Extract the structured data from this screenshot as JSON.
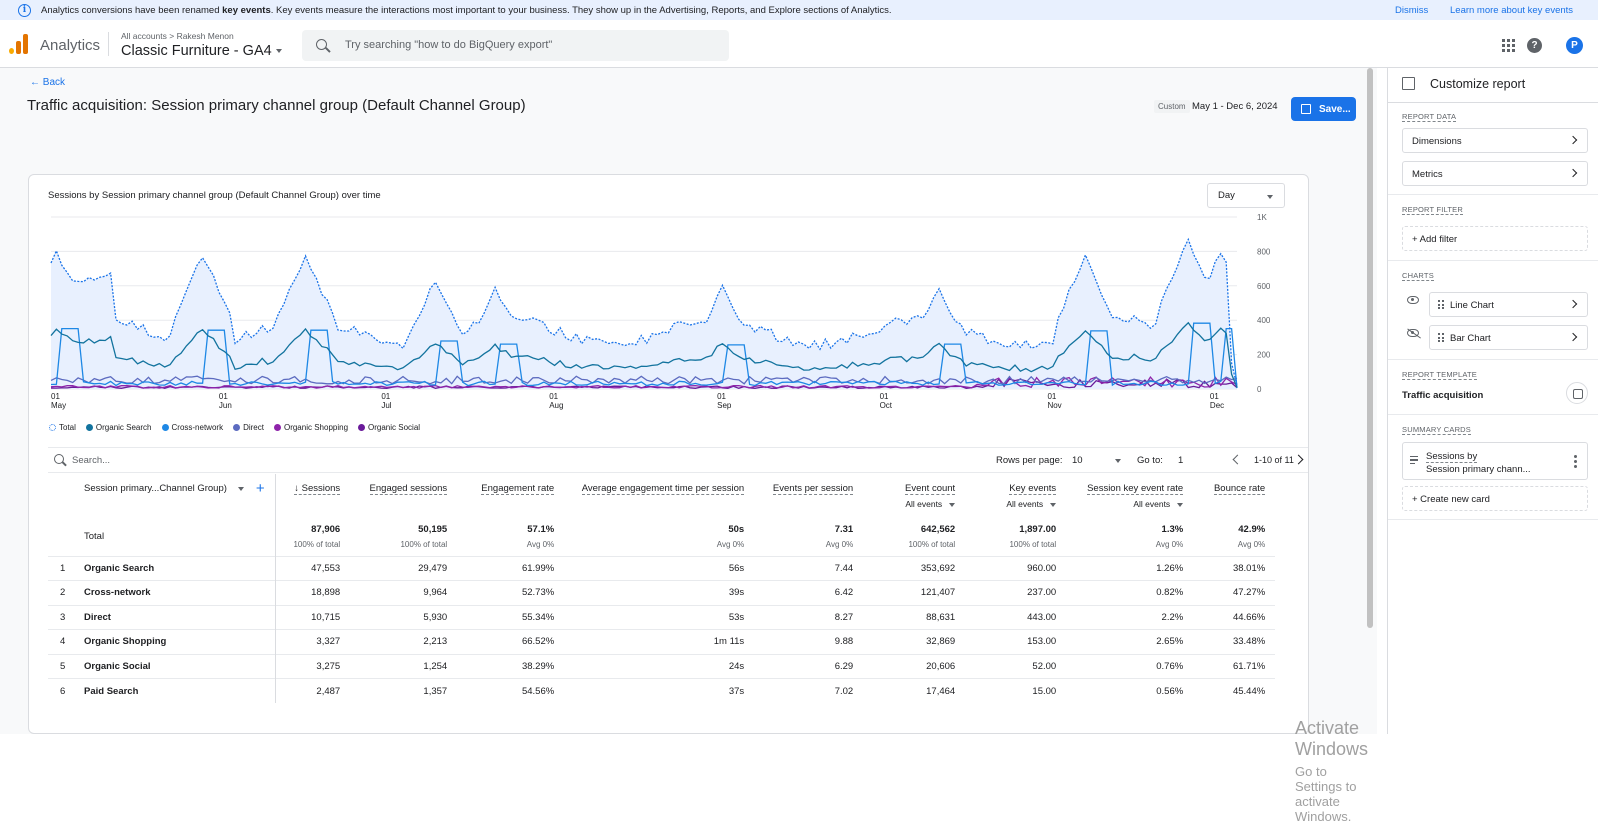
{
  "banner": {
    "text_before": "Analytics conversions have been renamed ",
    "text_bold": "key events",
    "text_after": ". Key events measure the interactions most important to your business. They show up in the Advertising, Reports, and Explore sections of Analytics.",
    "dismiss_label": "Dismiss",
    "learn_more_label": "Learn more about key events"
  },
  "header": {
    "app_name": "Analytics",
    "crumb_all": "All accounts",
    "crumb_sep": ">",
    "crumb_account": "Rakesh Menon",
    "property": "Classic Furniture - GA4",
    "search_placeholder": "Try searching \"how to do BigQuery export\""
  },
  "page": {
    "back_label": "Back",
    "title": "Traffic acquisition: Session primary channel group (Default Channel Group)",
    "custom_label": "Custom",
    "date_range": "May 1 - Dec 6, 2024",
    "save_label": "Save..."
  },
  "chart_data": {
    "type": "line",
    "title": "Sessions by Session primary channel group (Default Channel Group) over time",
    "granularity": "Day",
    "x_ticks": [
      {
        "day": "01",
        "month": "May",
        "offset": 0
      },
      {
        "day": "01",
        "month": "Jun",
        "offset": 31
      },
      {
        "day": "01",
        "month": "Jul",
        "offset": 61
      },
      {
        "day": "01",
        "month": "Aug",
        "offset": 92
      },
      {
        "day": "01",
        "month": "Sep",
        "offset": 123
      },
      {
        "day": "01",
        "month": "Oct",
        "offset": 153
      },
      {
        "day": "01",
        "month": "Nov",
        "offset": 184
      },
      {
        "day": "01",
        "month": "Dec",
        "offset": 214
      }
    ],
    "y_ticks": [
      "0",
      "200",
      "400",
      "600",
      "800",
      "1K"
    ],
    "ylim": [
      0,
      1000
    ],
    "series": [
      {
        "name": "Total",
        "color": "#1a73e8"
      },
      {
        "name": "Organic Search",
        "color": "#12739e"
      },
      {
        "name": "Cross-network",
        "color": "#1e88e5"
      },
      {
        "name": "Direct",
        "color": "#5c6bc0"
      },
      {
        "name": "Organic Shopping",
        "color": "#8e24aa"
      },
      {
        "name": "Organic Social",
        "color": "#6a1b9a"
      }
    ]
  },
  "table": {
    "search_placeholder": "Search...",
    "rows_per_page_label": "Rows per page:",
    "rows_per_page": "10",
    "goto_label": "Go to:",
    "goto_value": "1",
    "range_label": "1-10 of 11",
    "dimension_header": "Session primary...Channel Group)",
    "columns": [
      {
        "label": "↓ Sessions",
        "sub": ""
      },
      {
        "label": "Engaged sessions",
        "sub": ""
      },
      {
        "label": "Engagement rate",
        "sub": ""
      },
      {
        "label": "Average engagement time per session",
        "sub": ""
      },
      {
        "label": "Events per session",
        "sub": ""
      },
      {
        "label": "Event count",
        "sub": "All events"
      },
      {
        "label": "Key events",
        "sub": "All events"
      },
      {
        "label": "Session key event rate",
        "sub": "All events"
      },
      {
        "label": "Bounce rate",
        "sub": ""
      }
    ],
    "total": {
      "label": "Total",
      "values": [
        "87,906",
        "50,195",
        "57.1%",
        "50s",
        "7.31",
        "642,562",
        "1,897.00",
        "1.3%",
        "42.9%"
      ],
      "subs": [
        "100% of total",
        "100% of total",
        "Avg 0%",
        "Avg 0%",
        "Avg 0%",
        "100% of total",
        "100% of total",
        "Avg 0%",
        "Avg 0%"
      ]
    },
    "rows": [
      {
        "idx": "1",
        "name": "Organic Search",
        "values": [
          "47,553",
          "29,479",
          "61.99%",
          "56s",
          "7.44",
          "353,692",
          "960.00",
          "1.26%",
          "38.01%"
        ]
      },
      {
        "idx": "2",
        "name": "Cross-network",
        "values": [
          "18,898",
          "9,964",
          "52.73%",
          "39s",
          "6.42",
          "121,407",
          "237.00",
          "0.82%",
          "47.27%"
        ]
      },
      {
        "idx": "3",
        "name": "Direct",
        "values": [
          "10,715",
          "5,930",
          "55.34%",
          "53s",
          "8.27",
          "88,631",
          "443.00",
          "2.2%",
          "44.66%"
        ]
      },
      {
        "idx": "4",
        "name": "Organic Shopping",
        "values": [
          "3,327",
          "2,213",
          "66.52%",
          "1m 11s",
          "9.88",
          "32,869",
          "153.00",
          "2.65%",
          "33.48%"
        ]
      },
      {
        "idx": "5",
        "name": "Organic Social",
        "values": [
          "3,275",
          "1,254",
          "38.29%",
          "24s",
          "6.29",
          "20,606",
          "52.00",
          "0.76%",
          "61.71%"
        ]
      },
      {
        "idx": "6",
        "name": "Paid Search",
        "values": [
          "2,487",
          "1,357",
          "54.56%",
          "37s",
          "7.02",
          "17,464",
          "15.00",
          "0.56%",
          "45.44%"
        ]
      }
    ]
  },
  "watermark": {
    "line1": "Activate Windows",
    "line2": "Go to Settings to activate Windows."
  },
  "sidebar": {
    "title": "Customize report",
    "report_data_label": "REPORT DATA",
    "dimensions_label": "Dimensions",
    "metrics_label": "Metrics",
    "report_filter_label": "REPORT FILTER",
    "add_filter_label": "+ Add filter",
    "charts_label": "CHARTS",
    "line_chart_label": "Line Chart",
    "bar_chart_label": "Bar Chart",
    "report_template_label": "REPORT TEMPLATE",
    "template_name": "Traffic acquisition",
    "summary_cards_label": "SUMMARY CARDS",
    "card_line1": "Sessions by",
    "card_line2": "Session primary chann...",
    "create_card_label": "+ Create new card"
  }
}
